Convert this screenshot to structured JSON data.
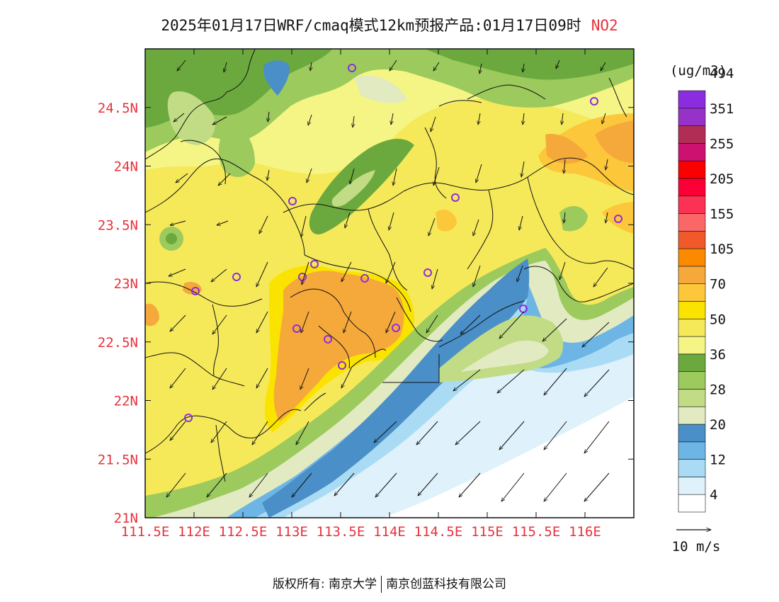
{
  "title": {
    "text": "2025年01月17日WRF/cmaq模式12km预报产品:01月17日09时",
    "pollutant": "NO2"
  },
  "map": {
    "lon_ticks": [
      "111.5E",
      "112E",
      "112.5E",
      "113E",
      "113.5E",
      "114E",
      "114.5E",
      "115E",
      "115.5E",
      "116E"
    ],
    "lat_ticks": [
      "21N",
      "21.5N",
      "22N",
      "22.5N",
      "23N",
      "23.5N",
      "24N",
      "24.5N"
    ],
    "lon_range": [
      111.5,
      116.5
    ],
    "lat_range": [
      21,
      25
    ],
    "tick_color": "#e8323c"
  },
  "colorbar": {
    "unit": "(ug/m3)",
    "colors": [
      "#ffffff",
      "#dff1fb",
      "#a9dcf4",
      "#6db5e5",
      "#4a8fc7",
      "#e2eac2",
      "#c1dc84",
      "#9cca5c",
      "#6ba93e",
      "#f5f585",
      "#f5e95a",
      "#fbe300",
      "#fcc73a",
      "#f6a93b",
      "#fb8a00",
      "#f05a28",
      "#fb6767",
      "#fb3254",
      "#fb0036",
      "#fb0000",
      "#cc1170",
      "#b22d56",
      "#9632c8",
      "#8c2ce0"
    ],
    "labels": [
      "4",
      "12",
      "20",
      "28",
      "36",
      "50",
      "70",
      "105",
      "155",
      "205",
      "255",
      "351",
      "494"
    ]
  },
  "wind_reference": {
    "label": "10 m/s"
  },
  "footer": {
    "left": "版权所有: 南京大学",
    "right": "南京创蓝科技有限公司"
  }
}
